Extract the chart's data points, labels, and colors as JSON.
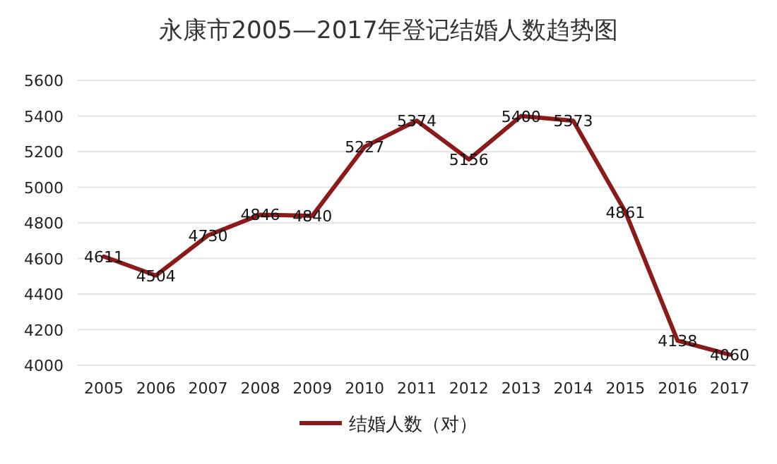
{
  "chart_data": {
    "type": "line",
    "title": "永康市2005—2017年登记结婚人数趋势图",
    "categories": [
      "2005",
      "2006",
      "2007",
      "2008",
      "2009",
      "2010",
      "2011",
      "2012",
      "2013",
      "2014",
      "2015",
      "2016",
      "2017"
    ],
    "series": [
      {
        "name": "结婚人数（对）",
        "color": "#8b1a1a",
        "values": [
          4611,
          4504,
          4730,
          4846,
          4840,
          5227,
          5374,
          5156,
          5400,
          5373,
          4861,
          4138,
          4060
        ]
      }
    ],
    "ylim": [
      4000,
      5600
    ],
    "yticks": [
      4000,
      4200,
      4400,
      4600,
      4800,
      5000,
      5200,
      5400,
      5600
    ],
    "grid": "y",
    "legend": "bottom",
    "data_labels": true,
    "marker": "none",
    "line_style": "solid"
  }
}
